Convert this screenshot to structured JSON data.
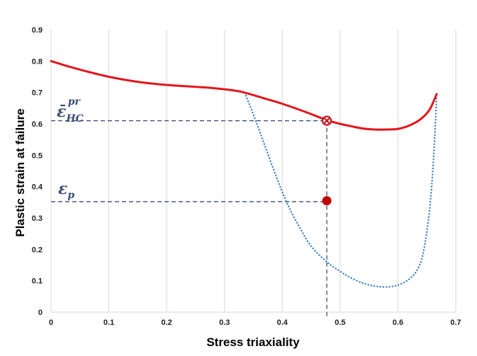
{
  "chart_data": {
    "type": "line",
    "xlabel": "Stress triaxiality",
    "ylabel": "Plastic strain at failure",
    "xlim": [
      0,
      0.7
    ],
    "ylim": [
      0,
      0.9
    ],
    "xticks": [
      "0",
      "0.1",
      "0.2",
      "0.3",
      "0.4",
      "0.5",
      "0.6",
      "0.7"
    ],
    "yticks": [
      "0",
      "0.1",
      "0.2",
      "0.3",
      "0.4",
      "0.5",
      "0.6",
      "0.7",
      "0.8",
      "0.9"
    ],
    "grid": "vertical",
    "series": [
      {
        "style": "solid",
        "color": "#e3151b",
        "x": [
          0,
          0.03,
          0.06,
          0.1,
          0.15,
          0.2,
          0.25,
          0.28,
          0.31,
          0.33,
          0.36,
          0.4,
          0.44,
          0.477,
          0.5,
          0.52,
          0.54,
          0.56,
          0.58,
          0.6,
          0.62,
          0.64,
          0.655,
          0.667
        ],
        "y": [
          0.8,
          0.783,
          0.768,
          0.75,
          0.734,
          0.724,
          0.718,
          0.714,
          0.708,
          0.702,
          0.686,
          0.664,
          0.638,
          0.612,
          0.6,
          0.592,
          0.585,
          0.582,
          0.582,
          0.584,
          0.595,
          0.616,
          0.646,
          0.695
        ]
      },
      {
        "style": "dotted",
        "color": "#3a82c4",
        "x": [
          0.337,
          0.35,
          0.37,
          0.39,
          0.41,
          0.43,
          0.45,
          0.477,
          0.5,
          0.52,
          0.54,
          0.56,
          0.58,
          0.6,
          0.62,
          0.635,
          0.645,
          0.655,
          0.662,
          0.667
        ],
        "y": [
          0.69,
          0.63,
          0.53,
          0.43,
          0.34,
          0.27,
          0.21,
          0.16,
          0.13,
          0.108,
          0.092,
          0.083,
          0.08,
          0.086,
          0.106,
          0.14,
          0.2,
          0.33,
          0.5,
          0.69
        ]
      }
    ],
    "reference_lines": {
      "color": "#3a4e74",
      "x_value": 0.477,
      "y_values": [
        0.61,
        0.352
      ]
    },
    "markers": [
      {
        "x": 0.477,
        "y": 0.61,
        "kind": "open-cross",
        "color": "#c8151b"
      },
      {
        "x": 0.477,
        "y": 0.355,
        "kind": "filled-circle",
        "color": "#c00000"
      }
    ],
    "annotations": [
      {
        "base": "ε̄",
        "sub": "HC",
        "sup": "pr",
        "y": 0.61
      },
      {
        "base": "ε",
        "sub": "p",
        "y": 0.352
      }
    ]
  }
}
